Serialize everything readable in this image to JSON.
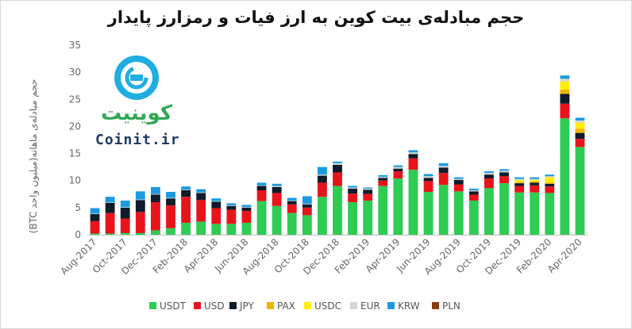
{
  "chart_data": {
    "type": "bar",
    "stacked": true,
    "title": "حجم مبادله‌ی بیت کوین به ارز فیات و رمزارز پایدار",
    "xlabel": "",
    "ylabel": "حجم مبادله‌ی ماهانه(میلیون واحد BTC)",
    "ylim": [
      0,
      35
    ],
    "yticks": [
      0,
      5,
      10,
      15,
      20,
      25,
      30,
      35
    ],
    "grid": false,
    "legend_position": "bottom",
    "categories": [
      "Aug-2017",
      "Sep-2017",
      "Oct-2017",
      "Nov-2017",
      "Dec-2017",
      "Jan-2018",
      "Feb-2018",
      "Mar-2018",
      "Apr-2018",
      "May-2018",
      "Jun-2018",
      "Jul-2018",
      "Aug-2018",
      "Sep-2018",
      "Oct-2018",
      "Nov-2018",
      "Dec-2018",
      "Jan-2019",
      "Feb-2019",
      "Mar-2019",
      "Apr-2019",
      "May-2019",
      "Jun-2019",
      "Jul-2019",
      "Aug-2019",
      "Sep-2019",
      "Oct-2019",
      "Nov-2019",
      "Dec-2019",
      "Jan-2020",
      "Feb-2020",
      "Mar-2020",
      "Apr-2020"
    ],
    "tick_labels": [
      "Aug-2017",
      "Oct-2017",
      "Dec-2017",
      "Feb-2018",
      "Apr-2018",
      "Jun-2018",
      "Aug-2018",
      "Oct-2018",
      "Dec-2018",
      "Feb-2019",
      "Apr-2019",
      "Jun-2019",
      "Aug-2019",
      "Oct-2019",
      "Dec-2019",
      "Feb-2020",
      "Apr-2020"
    ],
    "series": [
      {
        "name": "USDT",
        "color": "#2ecc52",
        "values": [
          0.2,
          0.2,
          0.3,
          0.3,
          0.8,
          1.2,
          2.2,
          2.4,
          2.0,
          2.0,
          2.2,
          6.2,
          5.3,
          4.0,
          3.6,
          7.0,
          9.0,
          6.0,
          6.3,
          9.0,
          10.4,
          12.0,
          7.9,
          9.2,
          8.0,
          6.3,
          8.6,
          9.5,
          7.8,
          7.8,
          7.7,
          21.5,
          16.2
        ]
      },
      {
        "name": "USD",
        "color": "#e8141b",
        "values": [
          2.3,
          3.8,
          2.7,
          3.9,
          5.2,
          4.2,
          4.8,
          4.0,
          2.9,
          2.6,
          2.2,
          2.0,
          2.4,
          1.6,
          1.4,
          2.6,
          2.5,
          1.6,
          1.2,
          1.0,
          1.3,
          2.1,
          2.0,
          2.2,
          1.3,
          1.1,
          1.8,
          1.3,
          1.2,
          1.3,
          1.2,
          2.7,
          1.5
        ]
      },
      {
        "name": "JPY",
        "color": "#0d1b2a",
        "values": [
          1.3,
          1.9,
          2.0,
          2.2,
          1.4,
          1.3,
          1.2,
          1.3,
          1.2,
          0.7,
          0.6,
          0.8,
          1.1,
          0.6,
          0.6,
          1.3,
          1.4,
          0.9,
          0.8,
          0.5,
          0.5,
          0.8,
          0.6,
          1.0,
          0.8,
          0.6,
          0.7,
          0.7,
          0.5,
          0.5,
          0.5,
          1.8,
          1.1
        ]
      },
      {
        "name": "PAX",
        "color": "#f0b400",
        "values": [
          0,
          0,
          0,
          0,
          0,
          0,
          0,
          0,
          0,
          0,
          0,
          0,
          0,
          0,
          0,
          0,
          0,
          0,
          0,
          0,
          0,
          0,
          0,
          0,
          0,
          0,
          0,
          0,
          0.2,
          0.2,
          0.2,
          0.8,
          0.8
        ]
      },
      {
        "name": "USDC",
        "color": "#ffee00",
        "values": [
          0,
          0,
          0,
          0,
          0,
          0,
          0,
          0,
          0,
          0,
          0,
          0,
          0,
          0,
          0,
          0,
          0,
          0,
          0,
          0,
          0,
          0,
          0,
          0,
          0,
          0,
          0,
          0,
          0.4,
          0.3,
          1.0,
          1.5,
          1.1
        ]
      },
      {
        "name": "EUR",
        "color": "#d4d4d4",
        "values": [
          0.1,
          0.1,
          0.1,
          0.1,
          0.1,
          0.1,
          0.1,
          0.1,
          0.1,
          0.1,
          0.1,
          0.1,
          0.2,
          0.1,
          0.1,
          0.2,
          0.3,
          0.2,
          0.2,
          0.2,
          0.3,
          0.3,
          0.3,
          0.3,
          0.2,
          0.2,
          0.3,
          0.3,
          0.2,
          0.2,
          0.2,
          0.5,
          0.4
        ]
      },
      {
        "name": "KRW",
        "color": "#1a9be0",
        "values": [
          1.0,
          1.0,
          1.2,
          1.5,
          1.3,
          1.1,
          0.6,
          0.6,
          0.5,
          0.4,
          0.4,
          0.5,
          0.4,
          0.5,
          1.4,
          1.4,
          0.3,
          0.3,
          0.2,
          0.3,
          0.3,
          0.4,
          0.4,
          0.5,
          0.3,
          0.3,
          0.3,
          0.3,
          0.3,
          0.3,
          0.3,
          0.6,
          0.5
        ]
      },
      {
        "name": "PLN",
        "color": "#8b3a0e",
        "values": [
          0,
          0,
          0,
          0,
          0,
          0,
          0,
          0,
          0,
          0,
          0,
          0,
          0,
          0,
          0,
          0,
          0,
          0,
          0,
          0,
          0,
          0,
          0,
          0,
          0,
          0,
          0,
          0,
          0,
          0,
          0,
          0,
          0
        ]
      }
    ]
  },
  "watermark": {
    "text_fa": "کوینیت",
    "text_en": "Coinit.ir",
    "colors": {
      "ring": "#20aee0",
      "text_fa": "#34a853",
      "text_en": "#1f3a68"
    }
  }
}
